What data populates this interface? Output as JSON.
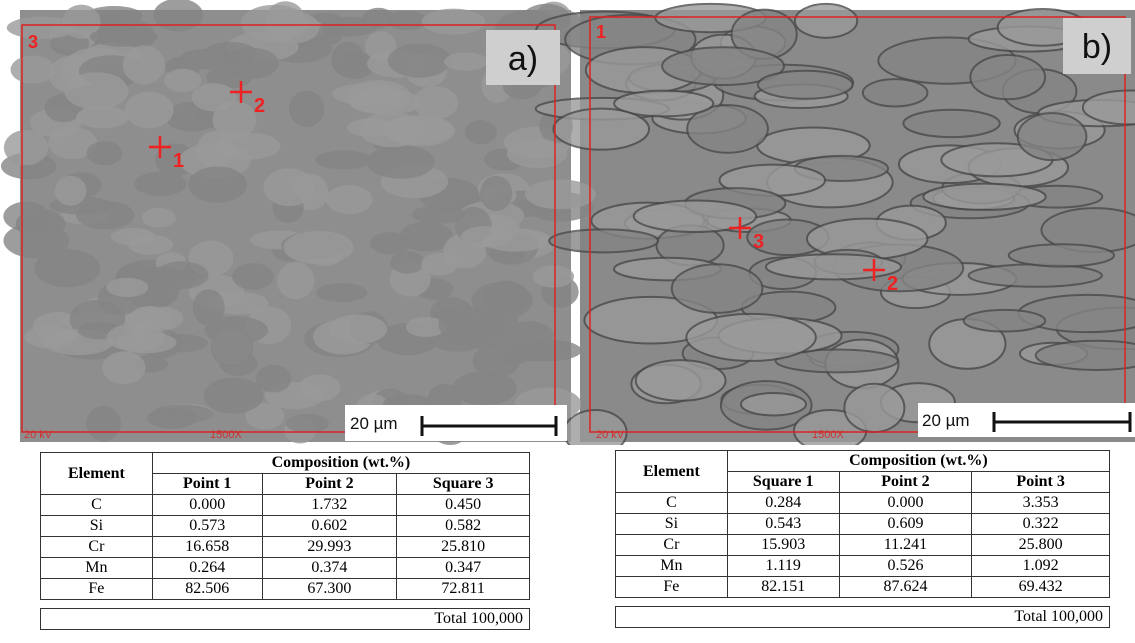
{
  "panels": [
    {
      "label": "a)",
      "region": "3",
      "points": [
        "1",
        "2"
      ],
      "voltage": "20 kV",
      "magnification": "1500X",
      "scale": "20 µm"
    },
    {
      "label": "b)",
      "region": "1",
      "points": [
        "3",
        "2"
      ],
      "voltage": "20 kV",
      "magnification": "1500X",
      "scale": "20 µm"
    }
  ],
  "tables": [
    {
      "element": "Element",
      "composition": "Composition (wt.%)",
      "columns": [
        "Point 1",
        "Point 2",
        "Square 3"
      ],
      "rows": [
        [
          "C",
          "0.000",
          "1.732",
          "0.450"
        ],
        [
          "Si",
          "0.573",
          "0.602",
          "0.582"
        ],
        [
          "Cr",
          "16.658",
          "29.993",
          "25.810"
        ],
        [
          "Mn",
          "0.264",
          "0.374",
          "0.347"
        ],
        [
          "Fe",
          "82.506",
          "67.300",
          "72.811"
        ]
      ],
      "total": "Total 100,000"
    },
    {
      "element": "Element",
      "composition": "Composition (wt.%)",
      "columns": [
        "Square 1",
        "Point 2",
        "Point 3"
      ],
      "rows": [
        [
          "C",
          "0.284",
          "0.000",
          "3.353"
        ],
        [
          "Si",
          "0.543",
          "0.609",
          "0.322"
        ],
        [
          "Cr",
          "15.903",
          "11.241",
          "25.800"
        ],
        [
          "Mn",
          "1.119",
          "0.526",
          "1.092"
        ],
        [
          "Fe",
          "82.151",
          "87.624",
          "69.432"
        ]
      ],
      "total": "Total 100,000"
    }
  ]
}
